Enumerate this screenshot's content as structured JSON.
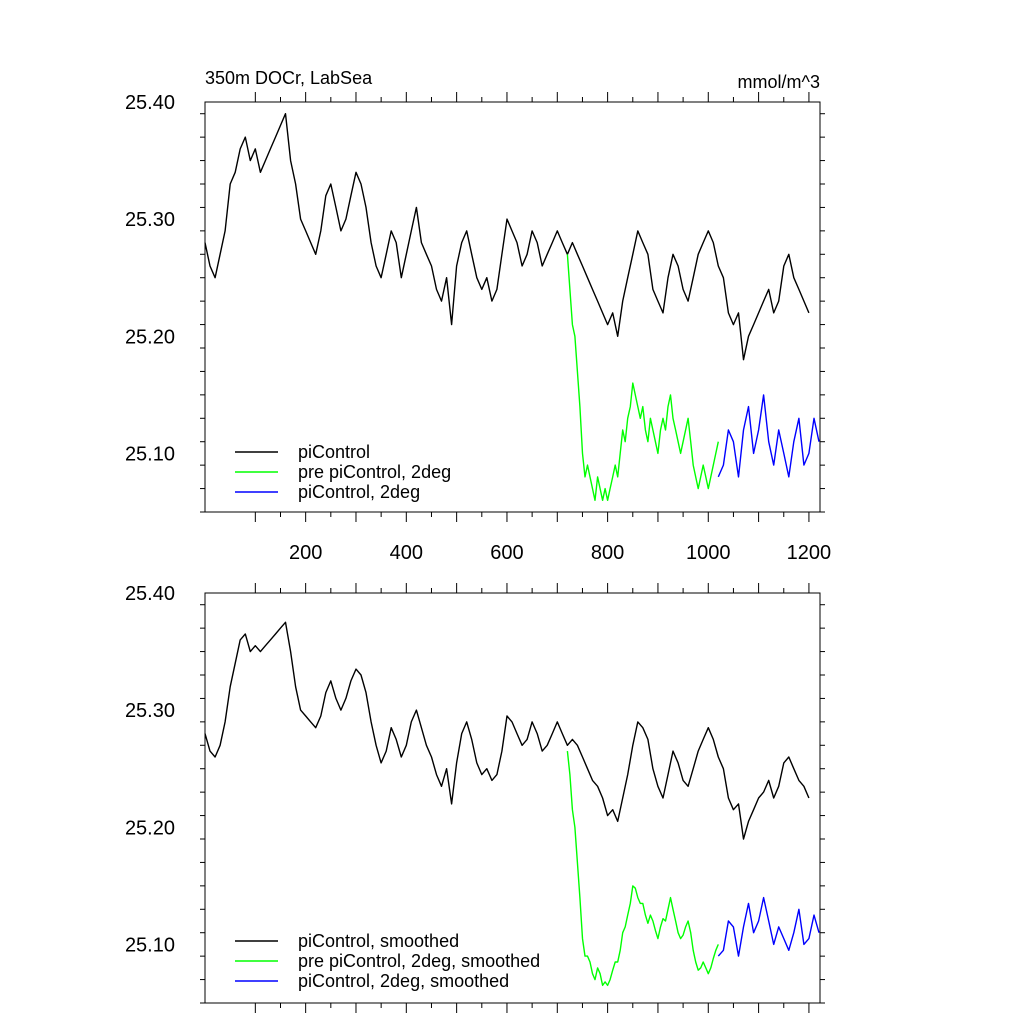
{
  "chart_data": [
    {
      "type": "line",
      "title": "350m DOCr, LabSea",
      "units": "mmol/m^3",
      "xlabel": "",
      "ylabel": "",
      "xlim": [
        0,
        1222
      ],
      "ylim": [
        25.05,
        25.4
      ],
      "xticks": [
        200,
        400,
        600,
        800,
        1000,
        1200
      ],
      "xtick_labels": [
        "200",
        "400",
        "600",
        "800",
        "1000",
        "1200"
      ],
      "yticks": [
        25.1,
        25.2,
        25.3,
        25.4
      ],
      "ytick_labels": [
        "25.10",
        "25.20",
        "25.30",
        "25.40"
      ],
      "legend_position": "bottom-left",
      "series": [
        {
          "name": "piControl",
          "color": "#000000",
          "x": [
            0,
            10,
            20,
            30,
            40,
            50,
            60,
            70,
            80,
            90,
            100,
            110,
            120,
            130,
            140,
            150,
            160,
            170,
            180,
            190,
            200,
            210,
            220,
            230,
            240,
            250,
            260,
            270,
            280,
            290,
            300,
            310,
            320,
            330,
            340,
            350,
            360,
            370,
            380,
            390,
            400,
            410,
            420,
            430,
            440,
            450,
            460,
            470,
            480,
            490,
            500,
            510,
            520,
            530,
            540,
            550,
            560,
            570,
            580,
            590,
            600,
            610,
            620,
            630,
            640,
            650,
            660,
            670,
            680,
            690,
            700,
            710,
            720,
            730,
            740,
            750,
            760,
            770,
            780,
            790,
            800,
            810,
            820,
            830,
            840,
            850,
            860,
            870,
            880,
            890,
            900,
            910,
            920,
            930,
            940,
            950,
            960,
            970,
            980,
            990,
            1000,
            1010,
            1020,
            1030,
            1040,
            1050,
            1060,
            1070,
            1080,
            1090,
            1100,
            1110,
            1120,
            1130,
            1140,
            1150,
            1160,
            1170,
            1180,
            1190,
            1200
          ],
          "y": [
            25.28,
            25.26,
            25.25,
            25.27,
            25.29,
            25.33,
            25.34,
            25.36,
            25.37,
            25.35,
            25.36,
            25.34,
            25.35,
            25.36,
            25.37,
            25.38,
            25.39,
            25.35,
            25.33,
            25.3,
            25.29,
            25.28,
            25.27,
            25.29,
            25.32,
            25.33,
            25.31,
            25.29,
            25.3,
            25.32,
            25.34,
            25.33,
            25.31,
            25.28,
            25.26,
            25.25,
            25.27,
            25.29,
            25.28,
            25.25,
            25.27,
            25.29,
            25.31,
            25.28,
            25.27,
            25.26,
            25.24,
            25.23,
            25.25,
            25.21,
            25.26,
            25.28,
            25.29,
            25.27,
            25.25,
            25.24,
            25.25,
            25.23,
            25.24,
            25.27,
            25.3,
            25.29,
            25.28,
            25.26,
            25.27,
            25.29,
            25.28,
            25.26,
            25.27,
            25.28,
            25.29,
            25.28,
            25.27,
            25.28,
            25.27,
            25.26,
            25.25,
            25.24,
            25.23,
            25.22,
            25.21,
            25.22,
            25.2,
            25.23,
            25.25,
            25.27,
            25.29,
            25.28,
            25.27,
            25.24,
            25.23,
            25.22,
            25.25,
            25.27,
            25.26,
            25.24,
            25.23,
            25.25,
            25.27,
            25.28,
            25.29,
            25.28,
            25.26,
            25.25,
            25.22,
            25.21,
            25.22,
            25.18,
            25.2,
            25.21,
            25.22,
            25.23,
            25.24,
            25.22,
            25.23,
            25.26,
            25.27,
            25.25,
            25.24,
            25.23,
            25.22
          ]
        },
        {
          "name": "pre piControl, 2deg",
          "color": "#00ff00",
          "x": [
            720,
            725,
            730,
            735,
            740,
            745,
            750,
            755,
            760,
            765,
            770,
            775,
            780,
            785,
            790,
            795,
            800,
            805,
            810,
            815,
            820,
            825,
            830,
            835,
            840,
            845,
            850,
            855,
            860,
            865,
            870,
            875,
            880,
            885,
            890,
            895,
            900,
            905,
            910,
            915,
            920,
            925,
            930,
            935,
            940,
            945,
            950,
            955,
            960,
            965,
            970,
            975,
            980,
            985,
            990,
            995,
            1000,
            1005,
            1010,
            1015,
            1020
          ],
          "y": [
            25.27,
            25.24,
            25.21,
            25.2,
            25.17,
            25.14,
            25.1,
            25.08,
            25.09,
            25.08,
            25.07,
            25.06,
            25.08,
            25.07,
            25.06,
            25.07,
            25.06,
            25.07,
            25.08,
            25.09,
            25.08,
            25.1,
            25.12,
            25.11,
            25.13,
            25.14,
            25.16,
            25.15,
            25.14,
            25.13,
            25.14,
            25.12,
            25.11,
            25.13,
            25.12,
            25.11,
            25.1,
            25.12,
            25.13,
            25.12,
            25.14,
            25.15,
            25.13,
            25.12,
            25.11,
            25.1,
            25.11,
            25.12,
            25.13,
            25.11,
            25.09,
            25.08,
            25.07,
            25.08,
            25.09,
            25.08,
            25.07,
            25.08,
            25.09,
            25.1,
            25.11
          ]
        },
        {
          "name": "piControl, 2deg",
          "color": "#0000ff",
          "x": [
            1020,
            1030,
            1040,
            1050,
            1060,
            1070,
            1080,
            1090,
            1100,
            1110,
            1120,
            1130,
            1140,
            1150,
            1160,
            1170,
            1180,
            1190,
            1200,
            1210,
            1220
          ],
          "y": [
            25.08,
            25.09,
            25.12,
            25.11,
            25.08,
            25.12,
            25.14,
            25.1,
            25.12,
            25.15,
            25.11,
            25.09,
            25.12,
            25.1,
            25.08,
            25.11,
            25.13,
            25.09,
            25.1,
            25.13,
            25.11
          ]
        }
      ]
    },
    {
      "type": "line",
      "title": "",
      "xlabel": "",
      "ylabel": "",
      "xlim": [
        0,
        1222
      ],
      "ylim": [
        25.05,
        25.4
      ],
      "yticks": [
        25.1,
        25.2,
        25.3,
        25.4
      ],
      "ytick_labels": [
        "25.10",
        "25.20",
        "25.30",
        "25.40"
      ],
      "legend_position": "bottom-left",
      "series": [
        {
          "name": "piControl, smoothed",
          "color": "#000000",
          "x": [
            0,
            10,
            20,
            30,
            40,
            50,
            60,
            70,
            80,
            90,
            100,
            110,
            120,
            130,
            140,
            150,
            160,
            170,
            180,
            190,
            200,
            210,
            220,
            230,
            240,
            250,
            260,
            270,
            280,
            290,
            300,
            310,
            320,
            330,
            340,
            350,
            360,
            370,
            380,
            390,
            400,
            410,
            420,
            430,
            440,
            450,
            460,
            470,
            480,
            490,
            500,
            510,
            520,
            530,
            540,
            550,
            560,
            570,
            580,
            590,
            600,
            610,
            620,
            630,
            640,
            650,
            660,
            670,
            680,
            690,
            700,
            710,
            720,
            730,
            740,
            750,
            760,
            770,
            780,
            790,
            800,
            810,
            820,
            830,
            840,
            850,
            860,
            870,
            880,
            890,
            900,
            910,
            920,
            930,
            940,
            950,
            960,
            970,
            980,
            990,
            1000,
            1010,
            1020,
            1030,
            1040,
            1050,
            1060,
            1070,
            1080,
            1090,
            1100,
            1110,
            1120,
            1130,
            1140,
            1150,
            1160,
            1170,
            1180,
            1190,
            1200
          ],
          "y": [
            25.28,
            25.265,
            25.26,
            25.27,
            25.29,
            25.32,
            25.34,
            25.36,
            25.365,
            25.35,
            25.355,
            25.35,
            25.355,
            25.36,
            25.365,
            25.37,
            25.375,
            25.35,
            25.32,
            25.3,
            25.295,
            25.29,
            25.285,
            25.295,
            25.315,
            25.325,
            25.31,
            25.3,
            25.31,
            25.325,
            25.335,
            25.33,
            25.315,
            25.29,
            25.27,
            25.255,
            25.265,
            25.285,
            25.275,
            25.26,
            25.27,
            25.29,
            25.3,
            25.285,
            25.27,
            25.26,
            25.245,
            25.235,
            25.25,
            25.22,
            25.255,
            25.28,
            25.29,
            25.275,
            25.255,
            25.245,
            25.25,
            25.24,
            25.245,
            25.265,
            25.295,
            25.29,
            25.28,
            25.27,
            25.275,
            25.29,
            25.28,
            25.265,
            25.27,
            25.28,
            25.29,
            25.28,
            25.27,
            25.275,
            25.27,
            25.26,
            25.25,
            25.24,
            25.235,
            25.225,
            25.21,
            25.215,
            25.205,
            25.225,
            25.245,
            25.27,
            25.29,
            25.285,
            25.275,
            25.25,
            25.235,
            25.225,
            25.245,
            25.265,
            25.255,
            25.24,
            25.235,
            25.25,
            25.265,
            25.275,
            25.285,
            25.275,
            25.26,
            25.25,
            25.225,
            25.215,
            25.22,
            25.19,
            25.205,
            25.215,
            25.225,
            25.23,
            25.24,
            25.225,
            25.235,
            25.255,
            25.26,
            25.25,
            25.24,
            25.235,
            25.225
          ]
        },
        {
          "name": "pre piControl, 2deg, smoothed",
          "color": "#00ff00",
          "x": [
            720,
            725,
            730,
            735,
            740,
            745,
            750,
            755,
            760,
            765,
            770,
            775,
            780,
            785,
            790,
            795,
            800,
            805,
            810,
            815,
            820,
            825,
            830,
            835,
            840,
            845,
            850,
            855,
            860,
            865,
            870,
            875,
            880,
            885,
            890,
            895,
            900,
            905,
            910,
            915,
            920,
            925,
            930,
            935,
            940,
            945,
            950,
            955,
            960,
            965,
            970,
            975,
            980,
            985,
            990,
            995,
            1000,
            1005,
            1010,
            1015,
            1020
          ],
          "y": [
            25.265,
            25.245,
            25.215,
            25.2,
            25.17,
            25.14,
            25.105,
            25.09,
            25.09,
            25.085,
            25.075,
            25.07,
            25.08,
            25.075,
            25.065,
            25.068,
            25.065,
            25.07,
            25.078,
            25.085,
            25.085,
            25.095,
            25.11,
            25.115,
            25.125,
            25.135,
            25.15,
            25.148,
            25.14,
            25.135,
            25.135,
            25.125,
            25.118,
            25.125,
            25.12,
            25.112,
            25.105,
            25.115,
            25.122,
            25.12,
            25.13,
            25.14,
            25.13,
            25.12,
            25.11,
            25.105,
            25.108,
            25.115,
            25.12,
            25.11,
            25.095,
            25.085,
            25.078,
            25.08,
            25.085,
            25.08,
            25.075,
            25.08,
            25.088,
            25.095,
            25.1
          ]
        },
        {
          "name": "piControl, 2deg, smoothed",
          "color": "#0000ff",
          "x": [
            1020,
            1030,
            1040,
            1050,
            1060,
            1070,
            1080,
            1090,
            1100,
            1110,
            1120,
            1130,
            1140,
            1150,
            1160,
            1170,
            1180,
            1190,
            1200,
            1210,
            1220
          ],
          "y": [
            25.09,
            25.095,
            25.12,
            25.115,
            25.09,
            25.115,
            25.135,
            25.11,
            25.12,
            25.14,
            25.12,
            25.1,
            25.115,
            25.105,
            25.095,
            25.11,
            25.13,
            25.1,
            25.105,
            25.125,
            25.11
          ]
        }
      ]
    }
  ]
}
